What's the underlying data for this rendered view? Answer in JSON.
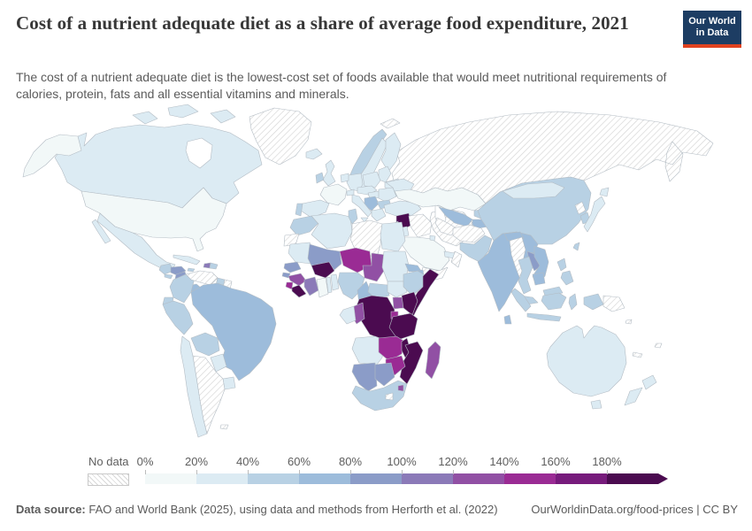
{
  "header": {
    "title": "Cost of a nutrient adequate diet as a share of average food expenditure, 2021",
    "subtitle": "The cost of a nutrient adequate diet is the lowest-cost set of foods available that would meet nutritional requirements of calories, protein, fats and all essential vitamins and minerals.",
    "logo": {
      "line1": "Our World",
      "line2": "in Data",
      "bg_color": "#1d3d63",
      "accent_color": "#e0421f"
    }
  },
  "legend": {
    "no_data_label": "No data",
    "tick_labels": [
      "0%",
      "20%",
      "40%",
      "60%",
      "80%",
      "100%",
      "120%",
      "140%",
      "160%",
      "180%"
    ],
    "bin_labels": [
      "0-20%",
      "20-40%",
      "40-60%",
      "60-80%",
      "80-100%",
      "100-120%",
      "120-140%",
      "140-160%",
      "160-180%",
      "180%+"
    ],
    "bin_colors": [
      "#f2f8f8",
      "#dcebf3",
      "#b8d1e4",
      "#9dbcdb",
      "#8b9cc8",
      "#8b7ab8",
      "#9150a4",
      "#9a2b94",
      "#771b7c",
      "#4b0b50"
    ]
  },
  "footer": {
    "source_label": "Data source:",
    "source_text": " FAO and World Bank (2025), using data and methods from Herforth et al. (2022)",
    "link_text": "OurWorldinData.org/food-prices",
    "separator": " | ",
    "license_text": "CC BY"
  },
  "chart_data": {
    "type": "choropleth",
    "title": "Cost of a nutrient adequate diet as a share of average food expenditure",
    "year": 2021,
    "unit": "% of average food expenditure",
    "legend_position": "bottom",
    "open_ended_top_bin": true,
    "bin_ranges_percent": [
      [
        0,
        20
      ],
      [
        20,
        40
      ],
      [
        40,
        60
      ],
      [
        60,
        80
      ],
      [
        80,
        100
      ],
      [
        100,
        120
      ],
      [
        120,
        140
      ],
      [
        140,
        160
      ],
      [
        160,
        180
      ],
      [
        180,
        null
      ]
    ],
    "no_data_value": -1,
    "no_data_style": "diagonal-hatch",
    "countries": {
      "united-states": 0,
      "canada": 1,
      "greenland": -1,
      "iceland": 1,
      "mexico": 1,
      "guatemala": 2,
      "honduras": 4,
      "el-salvador": 2,
      "nicaragua": 4,
      "costa-rica": 2,
      "panama": 3,
      "cuba": 1,
      "jamaica": 2,
      "haiti": 5,
      "dominican-republic": 2,
      "colombia": 2,
      "venezuela": -1,
      "guyana": 2,
      "suriname": -1,
      "ecuador": 2,
      "peru": 2,
      "brazil": 3,
      "bolivia": 2,
      "paraguay": 1,
      "chile": 1,
      "argentina": -1,
      "uruguay": 1,
      "falkland-islands": -1,
      "united-kingdom": 1,
      "ireland": 2,
      "france": 0,
      "spain": 1,
      "portugal": 2,
      "norway": 2,
      "sweden": 1,
      "finland": 1,
      "denmark": 1,
      "germany": 1,
      "netherlands": 1,
      "poland": 1,
      "baltic-states": 1,
      "belarus": 1,
      "ukraine": 1,
      "czechia-slovakia-austria": 1,
      "switzerland": 1,
      "hungary": 1,
      "romania": 1,
      "western-balkans": 3,
      "bulgaria": 2,
      "greece": 1,
      "italy": 1,
      "svalbard": -1,
      "turkey": 1,
      "georgia": 1,
      "armenia": 1,
      "azerbaijan": 2,
      "syria": 9,
      "lebanon": 1,
      "israel": 1,
      "jordan": 1,
      "iraq": -1,
      "iran": -1,
      "saudi-arabia": 0,
      "kuwait": 1,
      "united-arab-emirates": 1,
      "oman": -1,
      "yemen": -1,
      "morocco": 2,
      "western-sahara": -1,
      "algeria": 1,
      "tunisia": 2,
      "libya": -1,
      "egypt": 1,
      "mauritania": 1,
      "mali": 4,
      "niger": 7,
      "chad": 6,
      "sudan": 1,
      "eritrea": 3,
      "djibouti": 3,
      "senegal": 4,
      "guinea-bissau": 4,
      "guinea": 6,
      "sierra-leone": 7,
      "liberia": 9,
      "cote-divoire": 5,
      "ghana": 0,
      "togo": 1,
      "benin": 1,
      "burkina-faso": 9,
      "nigeria": 2,
      "cameroon": 3,
      "central-african-republic": 2,
      "south-sudan": 1,
      "ethiopia": 2,
      "somalia": 9,
      "uganda": 6,
      "kenya": 9,
      "rwanda-burundi": 7,
      "democratic-republic-of-congo": 9,
      "congo": 6,
      "gabon": 1,
      "angola": 1,
      "zambia": 7,
      "tanzania": 9,
      "malawi": 9,
      "mozambique": 9,
      "zimbabwe": 7,
      "namibia": 4,
      "botswana": 4,
      "south-africa": 2,
      "lesotho": -1,
      "eswatini": 6,
      "madagascar": 6,
      "russia": -1,
      "kazakhstan": 0,
      "uzbekistan": 3,
      "turkmenistan": -1,
      "kyrgyzstan": 2,
      "tajikistan": 3,
      "afghanistan": -1,
      "pakistan": 2,
      "india": 3,
      "nepal": 3,
      "bangladesh": 3,
      "sri-lanka": 3,
      "myanmar": -1,
      "thailand": 2,
      "laos": 4,
      "vietnam": 3,
      "cambodia": 3,
      "malaysia": 2,
      "indonesia": 2,
      "philippines": 2,
      "china": 2,
      "mongolia": 1,
      "north-korea": -1,
      "south-korea": 2,
      "japan": 1,
      "taiwan": 2,
      "papua-new-guinea": -1,
      "solomon-islands": -1,
      "new-caledonia": -1,
      "fiji": -1,
      "australia": 1,
      "new-zealand": 1
    }
  }
}
